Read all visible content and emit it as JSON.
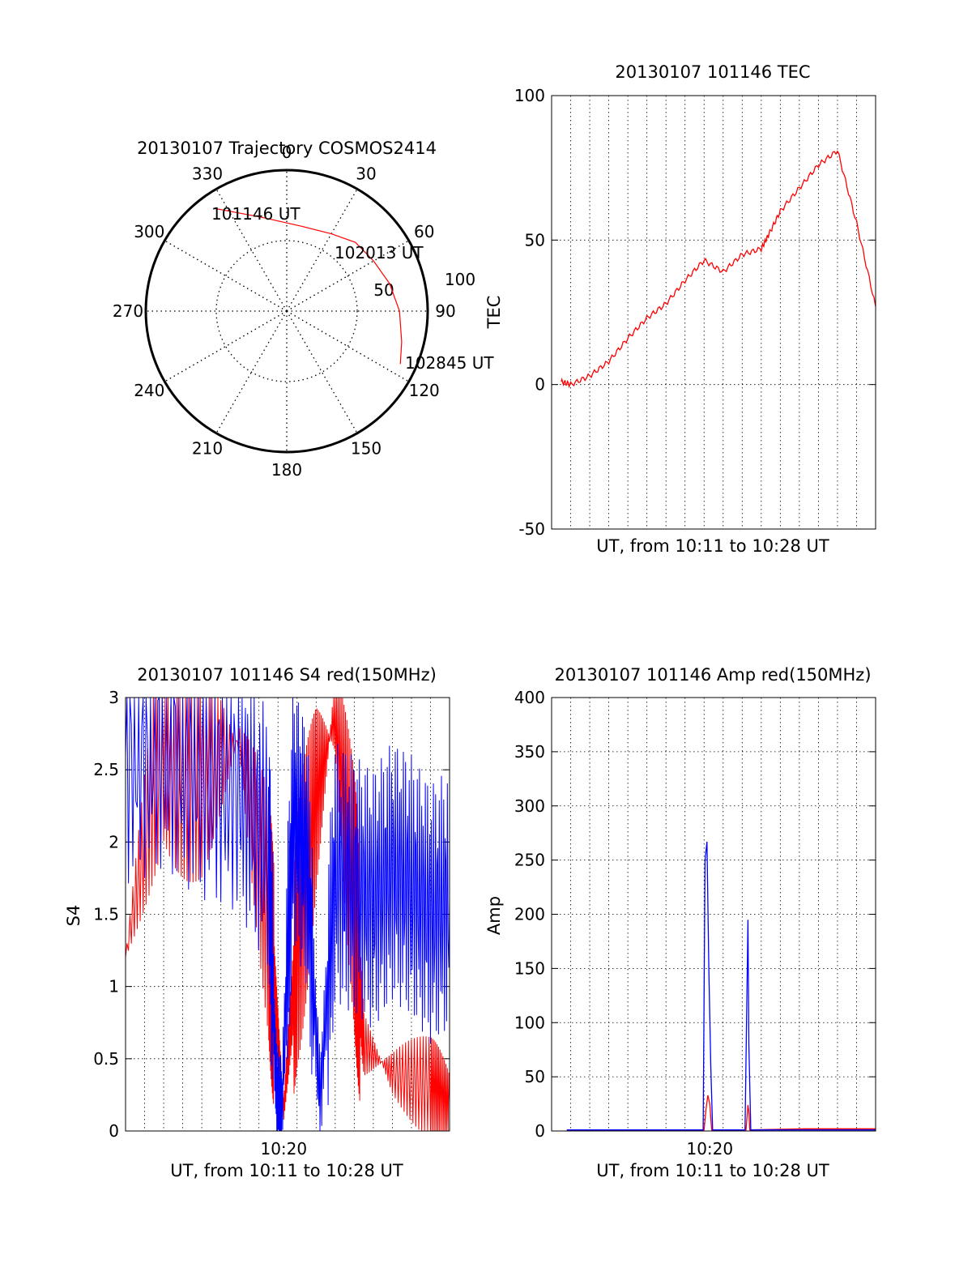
{
  "chart_data": [
    {
      "type": "polar",
      "title": "20130107 Trajectory COSMOS2414",
      "azimuth_labels": [
        "0",
        "30",
        "60",
        "90",
        "120",
        "150",
        "180",
        "210",
        "240",
        "270",
        "300",
        "330"
      ],
      "radial_labels": [
        "50",
        "100"
      ],
      "trajectory": {
        "color": "#ff0000",
        "points": [
          {
            "az": 325,
            "el": 10
          },
          {
            "az": 345,
            "el": 28
          },
          {
            "az": 10,
            "el": 35
          },
          {
            "az": 30,
            "el": 33
          },
          {
            "az": 45,
            "el": 28
          },
          {
            "az": 60,
            "el": 26
          },
          {
            "az": 75,
            "el": 22
          },
          {
            "az": 90,
            "el": 18
          },
          {
            "az": 105,
            "el": 14
          },
          {
            "az": 115,
            "el": 10
          }
        ]
      },
      "annotations": [
        {
          "text": "101146 UT",
          "az": 325,
          "el": 10
        },
        {
          "text": "102013 UT",
          "az": 55,
          "el": 26
        },
        {
          "text": "102845 UT",
          "az": 115,
          "el": 10
        }
      ]
    },
    {
      "type": "line",
      "title": "20130107 101146 TEC",
      "xlabel": "UT, from 10:11 to 10:28 UT",
      "ylabel": "TEC",
      "xlim": [
        0,
        17
      ],
      "ylim": [
        -50,
        100
      ],
      "yticks": [
        "-50",
        "0",
        "50",
        "100"
      ],
      "grid": true,
      "series": [
        {
          "color": "#ff0000",
          "x": [
            0.5,
            1,
            2,
            3,
            4,
            5,
            6,
            7,
            8,
            9,
            10,
            11,
            11.4,
            12,
            13,
            14,
            15,
            16,
            17
          ],
          "y": [
            1,
            0,
            3,
            8,
            16,
            23,
            28,
            36,
            43,
            39,
            45,
            47,
            52,
            60,
            68,
            76,
            81,
            56,
            27
          ]
        }
      ]
    },
    {
      "type": "line",
      "title": "20130107 101146 S4 red(150MHz)",
      "xlabel": "UT, from 10:11 to 10:28 UT",
      "ylabel": "S4",
      "xlim": [
        0,
        17
      ],
      "ylim": [
        0,
        3
      ],
      "yticks": [
        "0",
        "0.5",
        "1",
        "1.5",
        "2",
        "2.5",
        "3"
      ],
      "xticks": [
        {
          "x": 8.3,
          "label": "10:20"
        }
      ],
      "grid": true,
      "series": [
        {
          "color": "#ff0000",
          "x": [
            0,
            2,
            4,
            6,
            7.5,
            7.9,
            8.3,
            9,
            10,
            11,
            12,
            12.5,
            14,
            16,
            17
          ],
          "y": [
            1.2,
            2.8,
            2.5,
            2.7,
            1.5,
            0.8,
            0.15,
            1.3,
            2.3,
            2.9,
            1.6,
            0.6,
            0.4,
            0.3,
            0.2
          ]
        },
        {
          "color": "#0000ff",
          "x": [
            0,
            2,
            4,
            6,
            7.5,
            7.9,
            8.2,
            8.8,
            9.5,
            10.2,
            11,
            12,
            13,
            14,
            15,
            16,
            17
          ],
          "y": [
            2.6,
            2.7,
            2.5,
            2.4,
            2.0,
            0.3,
            0.15,
            2.2,
            1.9,
            0.2,
            1.8,
            1.7,
            1.6,
            1.8,
            1.7,
            1.5,
            1.6
          ]
        }
      ]
    },
    {
      "type": "line",
      "title": "20130107 101146 Amp red(150MHz)",
      "xlabel": "UT, from 10:11 to 10:28 UT",
      "ylabel": "Amp",
      "xlim": [
        0,
        17
      ],
      "ylim": [
        0,
        400
      ],
      "yticks": [
        "0",
        "50",
        "100",
        "150",
        "200",
        "250",
        "300",
        "350",
        "400"
      ],
      "xticks": [
        {
          "x": 8.3,
          "label": "10:20"
        }
      ],
      "grid": true,
      "series": [
        {
          "color": "#ff0000",
          "x": [
            0.8,
            8.0,
            8.1,
            8.2,
            8.3,
            8.4,
            10.2,
            10.3,
            10.35,
            10.4,
            13.3,
            17
          ],
          "y": [
            1,
            1,
            20,
            33,
            25,
            1,
            1,
            24,
            18,
            1,
            2,
            2
          ]
        },
        {
          "color": "#0000ff",
          "x": [
            0.8,
            7.95,
            8.05,
            8.15,
            8.25,
            8.35,
            8.45,
            10.15,
            10.25,
            10.3,
            10.35,
            10.45,
            17
          ],
          "y": [
            1,
            1,
            250,
            267,
            150,
            60,
            1,
            1,
            130,
            195,
            80,
            1,
            1
          ]
        }
      ]
    }
  ]
}
